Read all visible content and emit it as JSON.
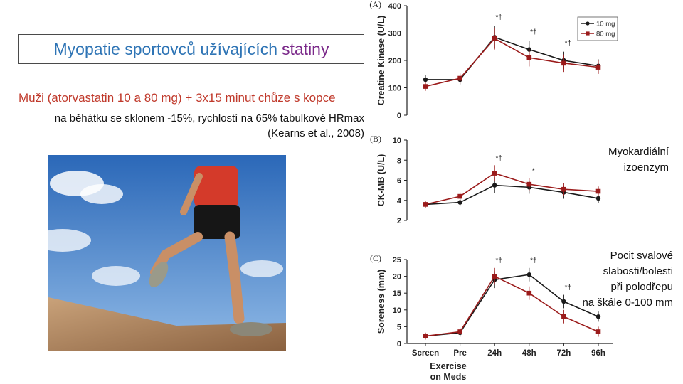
{
  "slide": {
    "title_main": "Myopatie sportovců užívajících",
    "title_accent": "statiny",
    "subtitle": "Muži (atorvastatin 10 a 80 mg) + 3x15 minut chůze s kopce",
    "description_line1": "na běhátku se sklonem -15%, rychlostí na 65% tabulkové HRmax",
    "description_line2": "(Kearns et al., 2008)",
    "note_b_line1": "Myokardiální",
    "note_b_line2": "izoenzym",
    "note_c_line1": "Pocit svalové",
    "note_c_line2": "slabosti/bolesti",
    "note_c_line3": "při polodřepu",
    "note_c_line4": "na škále 0-100 mm"
  },
  "colors": {
    "series_10mg": "#1a1a1a",
    "series_80mg": "#9b1b1b",
    "title": "#2e74b5",
    "title_accent": "#7b2a8a",
    "subtitle": "#c0392b"
  },
  "chart_data": [
    {
      "type": "line",
      "panel_label": "(A)",
      "ylabel": "Creatine Kinase (U/L)",
      "ylim": [
        0,
        400
      ],
      "yticks": [
        "0",
        "100",
        "200",
        "300",
        "400"
      ],
      "categories": [
        "Screen",
        "Pre",
        "24h",
        "48h",
        "72h",
        "96h"
      ],
      "series": [
        {
          "name": "10 mg",
          "values": [
            130,
            130,
            285,
            240,
            200,
            180
          ]
        },
        {
          "name": "80 mg",
          "values": [
            105,
            135,
            280,
            210,
            190,
            175
          ]
        }
      ],
      "annotations": [
        {
          "category": "24h",
          "text": "*†"
        },
        {
          "category": "48h",
          "text": "*†"
        },
        {
          "category": "72h",
          "text": "*†"
        }
      ],
      "legend": "top-right"
    },
    {
      "type": "line",
      "panel_label": "(B)",
      "ylabel": "CK-MB (U/L)",
      "ylim": [
        2,
        10
      ],
      "yticks": [
        "2",
        "4",
        "6",
        "8",
        "10"
      ],
      "categories": [
        "Screen",
        "Pre",
        "24h",
        "48h",
        "72h",
        "96h"
      ],
      "series": [
        {
          "name": "10 mg",
          "values": [
            3.6,
            3.8,
            5.5,
            5.3,
            4.8,
            4.2
          ]
        },
        {
          "name": "80 mg",
          "values": [
            3.6,
            4.4,
            6.7,
            5.6,
            5.1,
            4.9
          ]
        }
      ],
      "annotations": [
        {
          "category": "24h",
          "text": "*†"
        },
        {
          "category": "48h",
          "text": "*"
        }
      ]
    },
    {
      "type": "line",
      "panel_label": "(C)",
      "ylabel": "Soreness (mm)",
      "xlabel_line1": "Exercise",
      "xlabel_line2": "on Meds",
      "ylim": [
        0,
        25
      ],
      "yticks": [
        "0",
        "5",
        "10",
        "15",
        "20",
        "25"
      ],
      "categories": [
        "Screen",
        "Pre",
        "24h",
        "48h",
        "72h",
        "96h"
      ],
      "series": [
        {
          "name": "10 mg",
          "values": [
            2.2,
            3.2,
            19.0,
            20.5,
            12.5,
            8.0
          ]
        },
        {
          "name": "80 mg",
          "values": [
            2.2,
            3.5,
            20.0,
            15.0,
            8.0,
            3.5
          ]
        }
      ],
      "annotations": [
        {
          "category": "24h",
          "text": "*†"
        },
        {
          "category": "48h",
          "text": "*†"
        },
        {
          "category": "72h",
          "text": "*†"
        }
      ]
    }
  ]
}
